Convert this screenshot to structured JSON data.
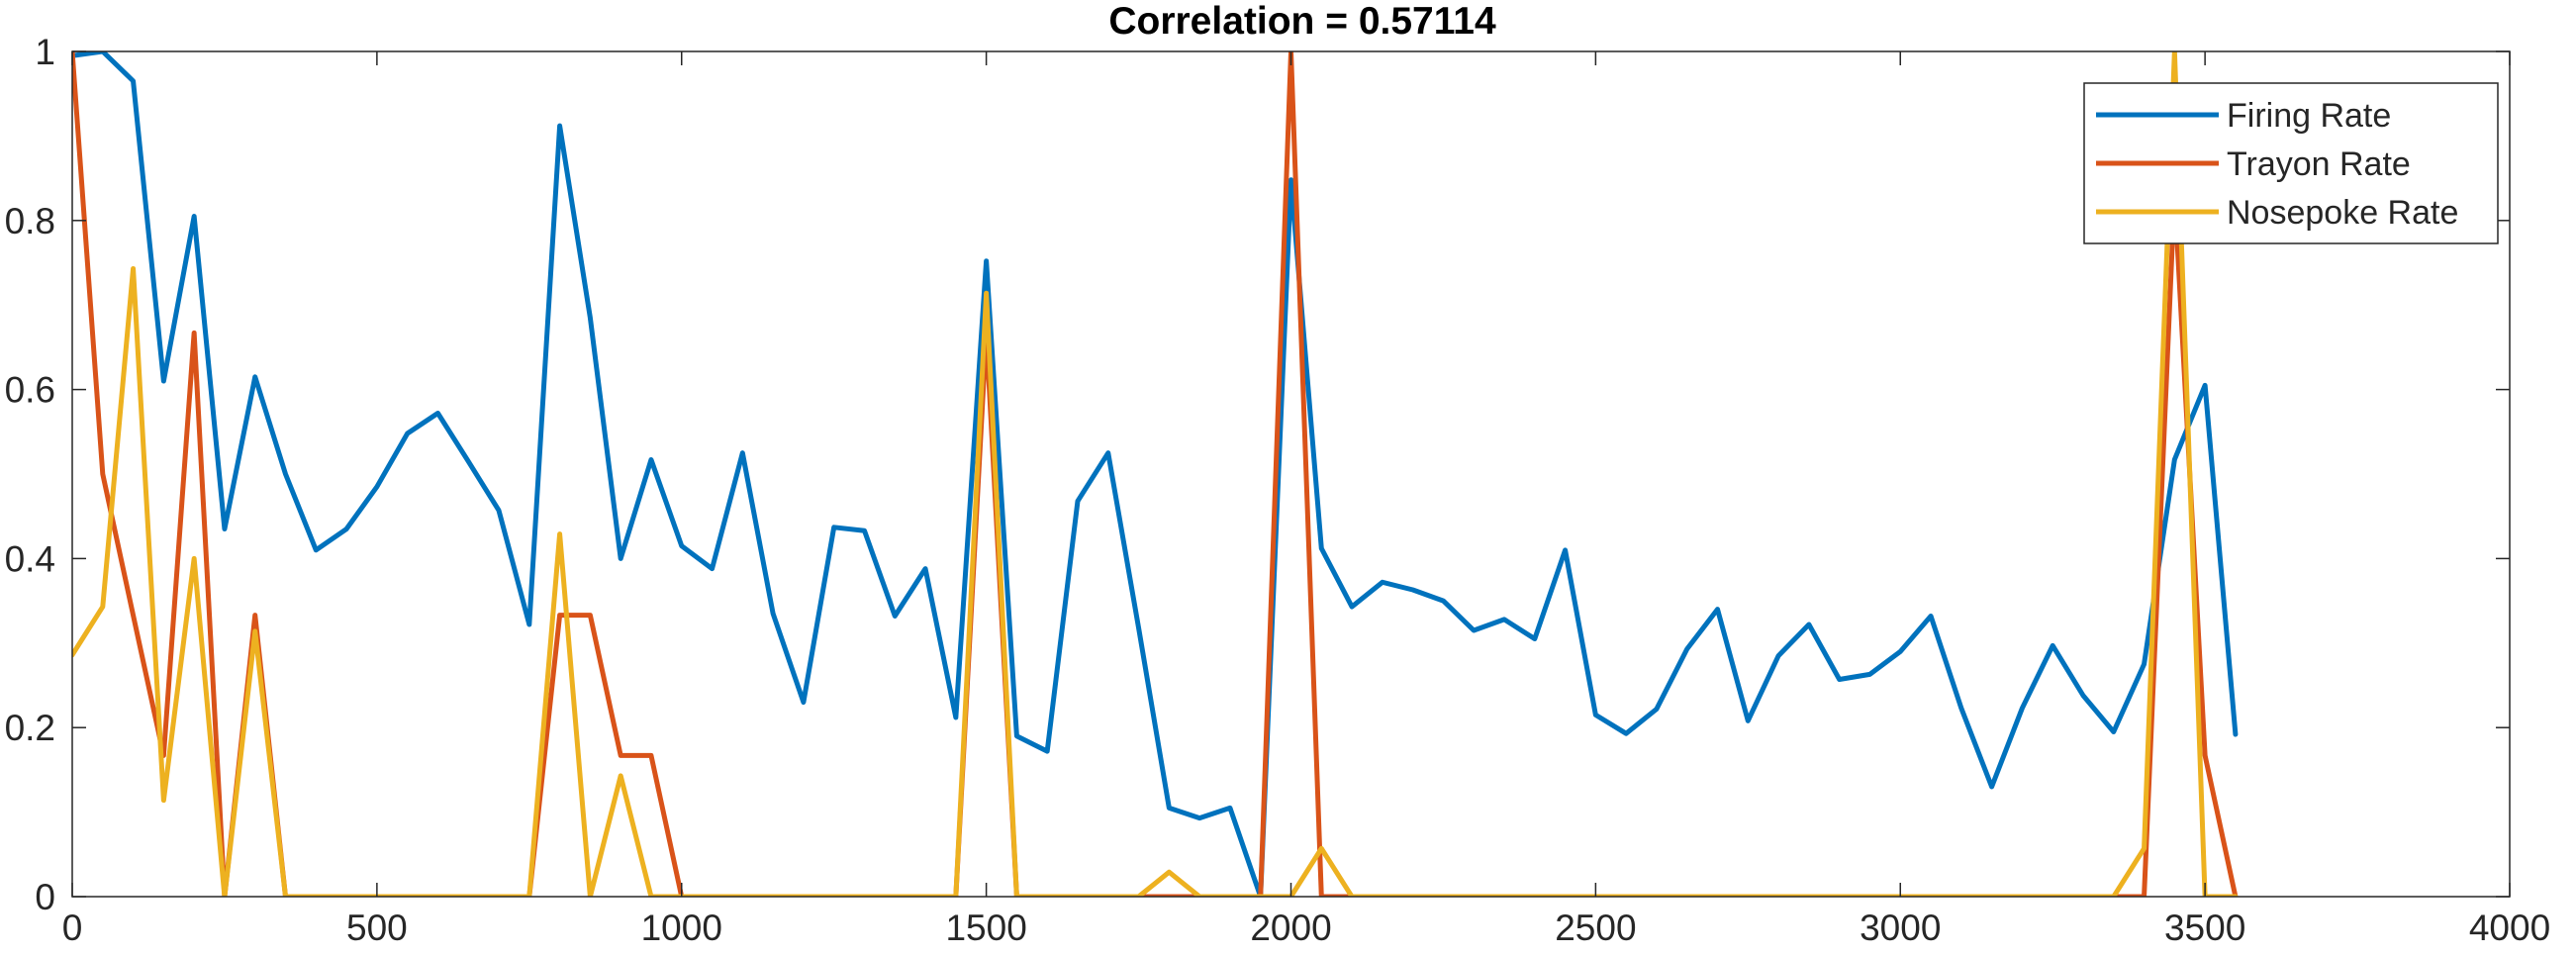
{
  "chart_data": {
    "type": "line",
    "title": "Correlation = 0.57114",
    "xlabel": "",
    "ylabel": "",
    "xlim": [
      0,
      4000
    ],
    "ylim": [
      0,
      1
    ],
    "xticks": [
      0,
      500,
      1000,
      1500,
      2000,
      2500,
      3000,
      3500,
      4000
    ],
    "yticks": [
      0,
      0.2,
      0.4,
      0.6,
      0.8,
      1
    ],
    "x_tick_labels": [
      "0",
      "500",
      "1000",
      "1500",
      "2000",
      "2500",
      "3000",
      "3500",
      "4000"
    ],
    "y_tick_labels": [
      "0",
      "0.2",
      "0.4",
      "0.6",
      "0.8",
      "1"
    ],
    "grid": false,
    "legend_position": "top-right",
    "series": [
      {
        "name": "Firing Rate",
        "color": "#0072BD",
        "x": [
          0,
          50,
          100,
          150,
          200,
          250,
          300,
          350,
          400,
          450,
          500,
          550,
          600,
          650,
          700,
          750,
          800,
          850,
          900,
          950,
          1000,
          1050,
          1100,
          1150,
          1200,
          1250,
          1300,
          1350,
          1400,
          1450,
          1500,
          1550,
          1600,
          1650,
          1700,
          1750,
          1800,
          1850,
          1900,
          1950,
          2000,
          2050,
          2100,
          2150,
          2200,
          2250,
          2300,
          2350,
          2400,
          2450,
          2500,
          2550,
          2600,
          2650,
          2700,
          2750,
          2800,
          2850,
          2900,
          2950,
          3000,
          3050,
          3100,
          3150,
          3200,
          3250,
          3300,
          3350,
          3400,
          3450,
          3500,
          3550
        ],
        "y": [
          0.995,
          1.0,
          0.965,
          0.61,
          0.805,
          0.435,
          0.615,
          0.5,
          0.41,
          0.435,
          0.485,
          0.548,
          0.572,
          0.515,
          0.457,
          0.322,
          0.912,
          0.685,
          0.4,
          0.517,
          0.415,
          0.388,
          0.525,
          0.335,
          0.23,
          0.437,
          0.433,
          0.332,
          0.388,
          0.212,
          0.752,
          0.19,
          0.172,
          0.468,
          0.525,
          0.318,
          0.105,
          0.093,
          0.105,
          0.0,
          0.848,
          0.412,
          0.343,
          0.372,
          0.363,
          0.35,
          0.315,
          0.328,
          0.305,
          0.41,
          0.215,
          0.193,
          0.222,
          0.293,
          0.34,
          0.208,
          0.285,
          0.322,
          0.257,
          0.263,
          0.29,
          0.332,
          0.223,
          0.13,
          0.223,
          0.297,
          0.238,
          0.195,
          0.275,
          0.517,
          0.605,
          0.192
        ]
      },
      {
        "name": "Trayon Rate",
        "color": "#D95319",
        "x": [
          0,
          50,
          100,
          150,
          200,
          250,
          300,
          350,
          400,
          450,
          500,
          550,
          600,
          650,
          700,
          750,
          800,
          850,
          900,
          950,
          1000,
          1050,
          1100,
          1150,
          1200,
          1250,
          1300,
          1350,
          1400,
          1450,
          1500,
          1550,
          1600,
          1650,
          1700,
          1750,
          1800,
          1850,
          1900,
          1950,
          2000,
          2050,
          2100,
          2150,
          2200,
          2250,
          2300,
          2350,
          2400,
          2450,
          2500,
          2550,
          2600,
          2650,
          2700,
          2750,
          2800,
          2850,
          2900,
          2950,
          3000,
          3050,
          3100,
          3150,
          3200,
          3250,
          3300,
          3350,
          3400,
          3450,
          3500,
          3550
        ],
        "y": [
          1.0,
          0.5,
          0.333,
          0.167,
          0.667,
          0.0,
          0.333,
          0.0,
          0.0,
          0.0,
          0.0,
          0.0,
          0.0,
          0.0,
          0.0,
          0.0,
          0.333,
          0.333,
          0.167,
          0.167,
          0.0,
          0.0,
          0.0,
          0.0,
          0.0,
          0.0,
          0.0,
          0.0,
          0.0,
          0.0,
          0.667,
          0.0,
          0.0,
          0.0,
          0.0,
          0.0,
          0.0,
          0.0,
          0.0,
          0.0,
          1.0,
          0.0,
          0.0,
          0.0,
          0.0,
          0.0,
          0.0,
          0.0,
          0.0,
          0.0,
          0.0,
          0.0,
          0.0,
          0.0,
          0.0,
          0.0,
          0.0,
          0.0,
          0.0,
          0.0,
          0.0,
          0.0,
          0.0,
          0.0,
          0.0,
          0.0,
          0.0,
          0.0,
          0.0,
          0.833,
          0.167,
          0.0
        ]
      },
      {
        "name": "Nosepoke Rate",
        "color": "#EDB120",
        "x": [
          0,
          50,
          100,
          150,
          200,
          250,
          300,
          350,
          400,
          450,
          500,
          550,
          600,
          650,
          700,
          750,
          800,
          850,
          900,
          950,
          1000,
          1050,
          1100,
          1150,
          1200,
          1250,
          1300,
          1350,
          1400,
          1450,
          1500,
          1550,
          1600,
          1650,
          1700,
          1750,
          1800,
          1850,
          1900,
          1950,
          2000,
          2050,
          2100,
          2150,
          2200,
          2250,
          2300,
          2350,
          2400,
          2450,
          2500,
          2550,
          2600,
          2650,
          2700,
          2750,
          2800,
          2850,
          2900,
          2950,
          3000,
          3050,
          3100,
          3150,
          3200,
          3250,
          3300,
          3350,
          3400,
          3450,
          3500,
          3550
        ],
        "y": [
          0.286,
          0.343,
          0.743,
          0.114,
          0.4,
          0.0,
          0.314,
          0.0,
          0.0,
          0.0,
          0.0,
          0.0,
          0.0,
          0.0,
          0.0,
          0.0,
          0.429,
          0.0,
          0.143,
          0.0,
          0.0,
          0.0,
          0.0,
          0.0,
          0.0,
          0.0,
          0.0,
          0.0,
          0.0,
          0.0,
          0.714,
          0.0,
          0.0,
          0.0,
          0.0,
          0.0,
          0.029,
          0.0,
          0.0,
          0.0,
          0.0,
          0.057,
          0.0,
          0.0,
          0.0,
          0.0,
          0.0,
          0.0,
          0.0,
          0.0,
          0.0,
          0.0,
          0.0,
          0.0,
          0.0,
          0.0,
          0.0,
          0.0,
          0.0,
          0.0,
          0.0,
          0.0,
          0.0,
          0.0,
          0.0,
          0.0,
          0.0,
          0.0,
          0.057,
          1.0,
          0.0,
          0.0
        ]
      }
    ]
  }
}
